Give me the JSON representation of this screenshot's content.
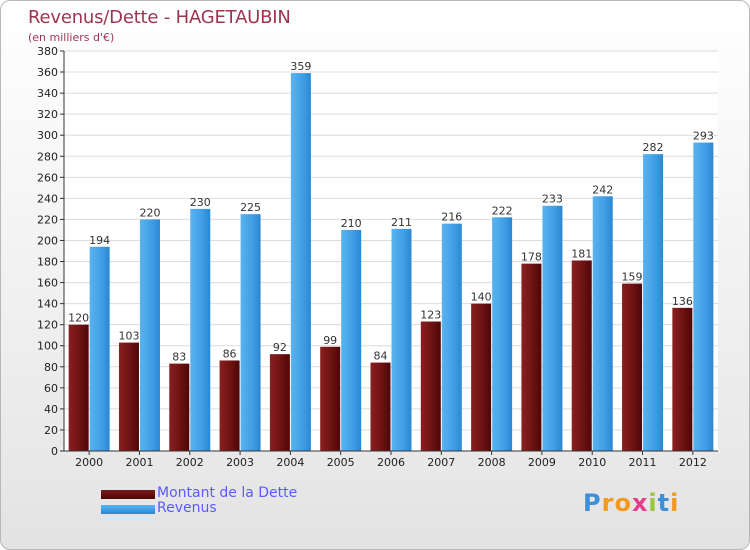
{
  "chart_data": {
    "type": "bar",
    "title": "Revenus/Dette - HAGETAUBIN",
    "subtitle": "(en milliers d'€)",
    "xlabel": "",
    "ylabel": "",
    "ylim": [
      0,
      380
    ],
    "yticks": [
      0,
      20,
      40,
      60,
      80,
      100,
      120,
      140,
      160,
      180,
      200,
      220,
      240,
      260,
      280,
      300,
      320,
      340,
      360,
      380
    ],
    "grid": true,
    "categories": [
      "2000",
      "2001",
      "2002",
      "2003",
      "2004",
      "2005",
      "2006",
      "2007",
      "2008",
      "2009",
      "2010",
      "2011",
      "2012"
    ],
    "series": [
      {
        "name": "Montant de la Dette",
        "color": "#7a1a1a",
        "values": [
          120,
          103,
          83,
          86,
          92,
          99,
          84,
          123,
          140,
          178,
          181,
          159,
          136
        ]
      },
      {
        "name": "Revenus",
        "color": "#4aa3e6",
        "values": [
          194,
          220,
          230,
          225,
          359,
          210,
          211,
          216,
          222,
          233,
          242,
          282,
          293
        ]
      }
    ],
    "legend_position": "bottom-left"
  },
  "logo": {
    "letters": [
      "P",
      "r",
      "o",
      "x",
      "i",
      "t",
      "i"
    ],
    "colors": [
      "#3d8fd9",
      "#f29a1d",
      "#f29a1d",
      "#e63c8c",
      "#9ac63c",
      "#3d8fd9",
      "#f29a1d"
    ]
  }
}
